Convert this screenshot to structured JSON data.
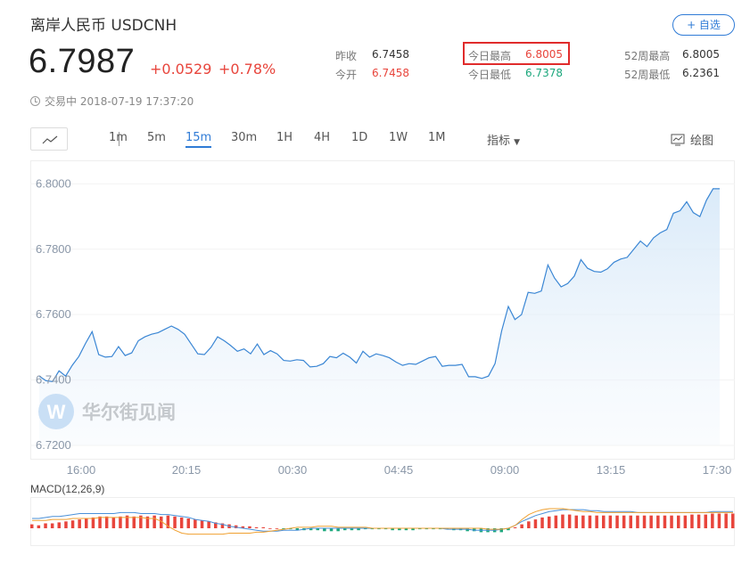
{
  "header": {
    "title": "离岸人民币  USDCNH",
    "add_button": "+ 自选",
    "price": "6.7987",
    "change": "+0.0529",
    "change_pct": "+0.78%",
    "status": "交易中 2018-07-19 17:37:20"
  },
  "stats": {
    "prev_close_label": "昨收",
    "prev_close": "6.7458",
    "open_label": "今开",
    "open": "6.7458",
    "high_label": "今日最高",
    "high": "6.8005",
    "low_label": "今日最低",
    "low": "6.7378",
    "high52_label": "52周最高",
    "high52": "6.8005",
    "low52_label": "52周最低",
    "low52": "6.2361"
  },
  "toolbar": {
    "timeframes": [
      "1m",
      "5m",
      "15m",
      "30m",
      "1H",
      "4H",
      "1D",
      "1W",
      "1M"
    ],
    "active_timeframe": "15m",
    "indicator_label": "指标",
    "draw_label": "绘图"
  },
  "watermark": "华尔街见闻",
  "colors": {
    "up": "#e8453c",
    "down": "#1ba77c",
    "accent": "#2f7bd6",
    "line": "#3a86d4"
  },
  "chart_data": {
    "type": "area",
    "ylim": [
      6.72,
      6.805
    ],
    "y_ticks": [
      "6.8000",
      "6.7800",
      "6.7600",
      "6.7400",
      "6.7200"
    ],
    "x_ticks": [
      "16:00",
      "20:15",
      "00:30",
      "04:45",
      "09:00",
      "13:15",
      "17:30"
    ],
    "values": [
      6.7412,
      6.7398,
      6.7395,
      6.7428,
      6.7412,
      6.7445,
      6.7472,
      6.7512,
      6.7548,
      6.7478,
      6.747,
      6.7472,
      6.7502,
      6.7475,
      6.7483,
      6.752,
      6.7532,
      6.754,
      6.7545,
      6.7555,
      6.7565,
      6.7555,
      6.754,
      6.751,
      6.748,
      6.7478,
      6.75,
      6.7532,
      6.752,
      6.7505,
      6.7488,
      6.7495,
      6.748,
      6.751,
      6.7478,
      6.749,
      6.748,
      6.746,
      6.7458,
      6.7462,
      6.746,
      6.744,
      6.7442,
      6.745,
      6.7472,
      6.7468,
      6.7482,
      6.747,
      6.7452,
      6.7488,
      6.747,
      6.748,
      6.7475,
      6.7468,
      6.7455,
      6.7445,
      6.745,
      6.7448,
      6.7458,
      6.7468,
      6.7472,
      6.7442,
      6.7445,
      6.7445,
      6.7448,
      6.741,
      6.741,
      6.7405,
      6.7412,
      6.745,
      6.755,
      6.7625,
      6.7585,
      6.76,
      6.7668,
      6.7665,
      6.7672,
      6.7752,
      6.7712,
      6.7685,
      6.7695,
      6.7718,
      6.7768,
      6.7742,
      6.7732,
      6.773,
      6.774,
      6.776,
      6.777,
      6.7775,
      6.78,
      6.7825,
      6.7808,
      6.7835,
      6.785,
      6.786,
      6.791,
      6.7918,
      6.7945,
      6.7912,
      6.79,
      6.795,
      6.7985,
      6.7985
    ],
    "macd": {
      "label": "MACD(12,26,9)",
      "histogram": [
        4,
        3,
        5,
        5,
        6,
        7,
        8,
        9,
        10,
        11,
        12,
        12,
        11,
        12,
        13,
        12,
        13,
        12,
        13,
        12,
        13,
        12,
        11,
        10,
        9,
        8,
        7,
        6,
        5,
        4,
        3,
        2,
        2,
        1,
        1,
        0,
        0,
        -1,
        -1,
        -2,
        -2,
        -2,
        -2,
        -3,
        -3,
        -3,
        -2,
        -2,
        -2,
        -1,
        -1,
        -1,
        -1,
        -2,
        -2,
        -2,
        -2,
        -1,
        -1,
        -1,
        -1,
        -1,
        -2,
        -2,
        -3,
        -3,
        -4,
        -4,
        -4,
        -4,
        -2,
        1,
        4,
        7,
        9,
        11,
        12,
        13,
        14,
        14,
        13,
        13,
        13,
        13,
        13,
        13,
        13,
        13,
        13,
        13,
        13,
        13,
        13,
        13,
        13,
        13,
        13,
        14,
        14,
        14,
        15,
        15,
        15,
        15
      ],
      "dif": [
        10,
        10,
        11,
        12,
        12,
        13,
        14,
        15,
        15,
        15,
        15,
        15,
        15,
        16,
        16,
        16,
        15,
        15,
        15,
        14,
        14,
        13,
        12,
        11,
        9,
        8,
        7,
        5,
        4,
        2,
        1,
        0,
        -1,
        -2,
        -3,
        -3,
        -3,
        -2,
        -2,
        -2,
        -1,
        0,
        0,
        0,
        0,
        0,
        0,
        0,
        0,
        0,
        0,
        0,
        0,
        0,
        0,
        0,
        0,
        0,
        0,
        0,
        0,
        -1,
        -1,
        -1,
        -1,
        -2,
        -2,
        -2,
        -2,
        -1,
        0,
        3,
        7,
        10,
        13,
        15,
        17,
        18,
        19,
        19,
        19,
        19,
        18,
        18,
        17,
        17,
        17,
        17,
        17,
        16,
        16,
        16,
        16,
        16,
        16,
        16,
        16,
        16,
        16,
        16,
        17,
        17,
        17,
        17
      ],
      "dea": [
        8,
        8,
        8,
        9,
        9,
        9,
        10,
        10,
        10,
        10,
        11,
        11,
        11,
        11,
        11,
        11,
        11,
        10,
        10,
        7,
        2,
        -2,
        -5,
        -6,
        -6,
        -6,
        -6,
        -6,
        -6,
        -5,
        -5,
        -5,
        -5,
        -4,
        -4,
        -3,
        -2,
        -1,
        0,
        1,
        1,
        1,
        2,
        2,
        2,
        1,
        1,
        1,
        1,
        1,
        0,
        0,
        0,
        0,
        0,
        0,
        0,
        0,
        0,
        0,
        0,
        0,
        0,
        0,
        0,
        0,
        0,
        -1,
        -1,
        -1,
        0,
        3,
        9,
        14,
        17,
        19,
        20,
        20,
        20,
        19,
        18,
        17,
        17,
        16,
        16,
        16,
        16,
        16,
        16,
        16,
        16,
        16,
        16,
        16,
        16,
        16,
        16,
        16,
        16,
        16,
        16,
        16,
        16,
        16
      ]
    }
  }
}
